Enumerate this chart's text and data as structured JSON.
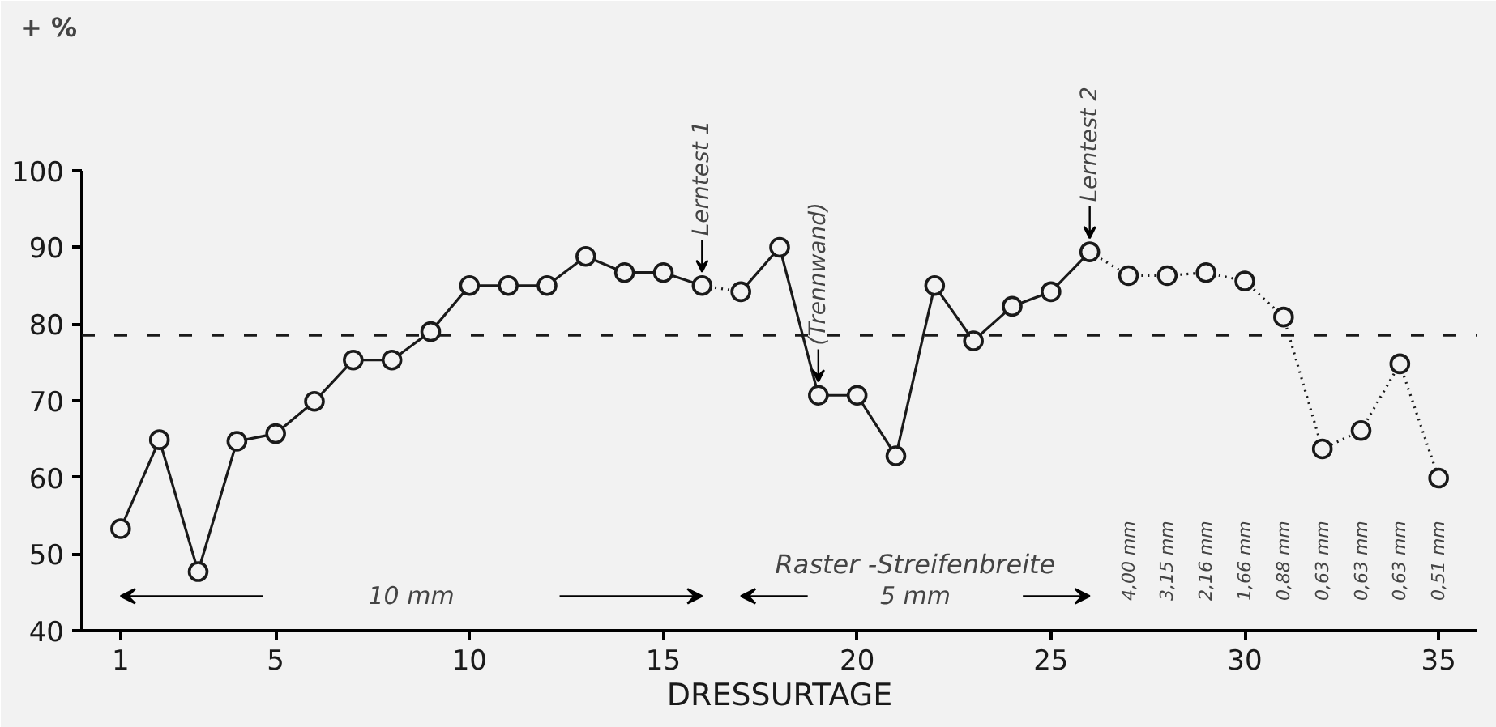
{
  "chart_data": {
    "type": "line",
    "xlabel": "DRESSURTAGE",
    "ylabel": "+ %",
    "xlim": [
      0,
      36
    ],
    "ylim": [
      40,
      100
    ],
    "xticks": [
      1,
      5,
      10,
      15,
      20,
      25,
      30,
      35
    ],
    "yticks": [
      40,
      50,
      60,
      70,
      80,
      90,
      100
    ],
    "grid": false,
    "series": [
      {
        "marker": "none",
        "line_style": "solid",
        "color": "#1a1a1a",
        "x": [
          1,
          2,
          3,
          4,
          5,
          6,
          7,
          8,
          9,
          10,
          11,
          12,
          13,
          14,
          15,
          16
        ],
        "values": [
          53.3,
          64.9,
          47.7,
          64.7,
          65.7,
          69.9,
          75.3,
          75.3,
          79,
          85,
          85,
          85,
          88.8,
          86.7,
          86.7,
          85
        ]
      },
      {
        "marker": "none",
        "line_style": "dotted",
        "color": "#1a1a1a",
        "x": [
          16,
          17
        ],
        "values": [
          85,
          84.2
        ]
      },
      {
        "marker": "none",
        "line_style": "solid",
        "color": "#1a1a1a",
        "x": [
          17,
          18,
          19,
          20,
          21,
          22,
          23,
          24,
          25,
          26
        ],
        "values": [
          84.2,
          90,
          70.7,
          70.7,
          62.8,
          85,
          77.8,
          82.3,
          84.2,
          89.4
        ]
      },
      {
        "marker": "none",
        "line_style": "dotted",
        "color": "#1a1a1a",
        "x": [
          26,
          27,
          28,
          29,
          30,
          31,
          32,
          33,
          34,
          35
        ],
        "values": [
          89.4,
          86.3,
          86.3,
          86.7,
          85.6,
          80.9,
          63.7,
          66.1,
          74.8,
          59.9
        ]
      },
      {
        "type": "scatter",
        "marker": "circle",
        "color": "#1a1a1a",
        "x": [
          1,
          2,
          3,
          4,
          5,
          6,
          7,
          8,
          9,
          10,
          11,
          12,
          13,
          14,
          15,
          16,
          17,
          18,
          19,
          20,
          21,
          22,
          23,
          24,
          25,
          26,
          27,
          28,
          29,
          30,
          31,
          32,
          33,
          34,
          35
        ],
        "values": [
          53.3,
          64.9,
          47.7,
          64.7,
          65.7,
          69.9,
          75.3,
          75.3,
          79,
          85,
          85,
          85,
          88.8,
          86.7,
          86.7,
          85,
          84.2,
          90,
          70.7,
          70.7,
          62.8,
          85,
          77.8,
          82.3,
          84.2,
          89.4,
          86.3,
          86.3,
          86.7,
          85.6,
          80.9,
          63.7,
          66.1,
          74.8,
          59.9
        ]
      }
    ],
    "ref_lines": [
      {
        "axis": "y",
        "value": 78.5,
        "label": null,
        "color": "#1a1a1a",
        "line_style": "dashed"
      }
    ],
    "annotations": [
      {
        "text": "Lerntest 1",
        "x": 16,
        "y": 85
      },
      {
        "text": "(Trennwand)",
        "x": 19,
        "y": 70.7
      },
      {
        "text": "Lerntest 2",
        "x": 26,
        "y": 89.4
      },
      "10 mm",
      "5 mm",
      "Raster -Streifenbreite",
      "4,00 mm",
      "3,15 mm",
      "2,16 mm",
      "1,66 mm",
      "0,88 mm",
      "0,63 mm",
      "0,63 mm",
      "0,63 mm",
      "0,51 mm"
    ]
  }
}
